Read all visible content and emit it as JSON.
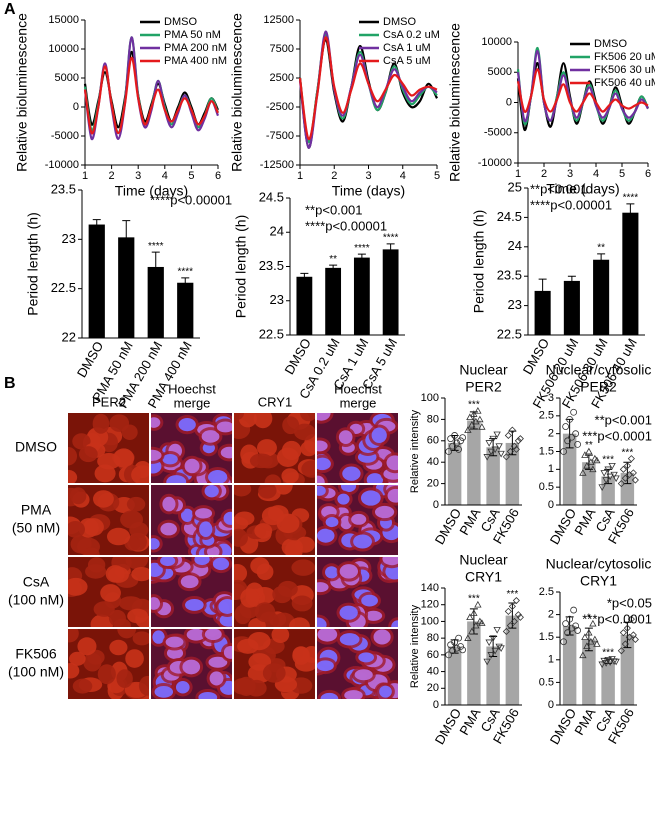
{
  "panels": {
    "a": "A",
    "b": "B"
  },
  "micrographs": {
    "columns": [
      [
        "PER2"
      ],
      [
        "Hoechst",
        "merge"
      ],
      [
        "CRY1"
      ],
      [
        "Hoechst",
        "merge"
      ]
    ],
    "rows": [
      [
        "DMSO"
      ],
      [
        "PMA",
        "(50 nM)"
      ],
      [
        "CsA",
        "(100 nM)"
      ],
      [
        "FK506",
        "(100 nM)"
      ]
    ]
  },
  "chart_data": [
    {
      "type": "line",
      "xlabel": "Time (days)",
      "ylabel": "Relative bioluminescence",
      "legend": "upper right",
      "x": [
        1,
        1.25,
        1.5,
        1.75,
        2,
        2.25,
        2.5,
        2.75,
        3,
        3.25,
        3.5,
        3.75,
        4,
        4.25,
        4.5,
        4.75,
        5,
        5.25,
        5.5,
        5.75,
        6
      ],
      "xlim": [
        1,
        6
      ],
      "xticks": [
        1,
        2,
        3,
        4,
        5,
        6
      ],
      "ylim": [
        -10000,
        15000
      ],
      "yticks": [
        -10000,
        -5000,
        0,
        5000,
        10000,
        15000
      ],
      "series": [
        {
          "name": "DMSO",
          "color": "#000000",
          "values": [
            4000,
            -3000,
            1000,
            6000,
            1000,
            -3500,
            1500,
            9500,
            2000,
            -2500,
            500,
            4000,
            500,
            -2500,
            0,
            2500,
            0,
            -3000,
            -1000,
            1500,
            -500
          ]
        },
        {
          "name": "PMA 50 nM",
          "color": "#21a366",
          "values": [
            3500,
            -4000,
            500,
            7000,
            500,
            -4500,
            1000,
            12000,
            2000,
            -3000,
            0,
            4500,
            0,
            -3000,
            -500,
            2000,
            -500,
            -3500,
            -1500,
            1500,
            -1000
          ]
        },
        {
          "name": "PMA 200 nM",
          "color": "#7030a0",
          "values": [
            3000,
            -5500,
            0,
            7500,
            0,
            -5500,
            500,
            12000,
            1500,
            -3500,
            -500,
            4500,
            -500,
            -3500,
            -1000,
            2000,
            -1000,
            -4000,
            -2000,
            1000,
            -1500
          ]
        },
        {
          "name": "PMA 400 nM",
          "color": "#e41a1c",
          "values": [
            3000,
            -4500,
            0,
            7000,
            500,
            -4500,
            500,
            8500,
            1500,
            -3000,
            0,
            3000,
            -500,
            -2500,
            -500,
            1500,
            -500,
            -3000,
            -1500,
            1000,
            -1000
          ]
        }
      ]
    },
    {
      "type": "line",
      "xlabel": "Time (days)",
      "ylabel": "Relative bioluminescence",
      "legend": "upper right",
      "x": [
        1,
        1.25,
        1.5,
        1.75,
        2,
        2.25,
        2.5,
        2.75,
        3,
        3.25,
        3.5,
        3.75,
        4,
        4.25,
        4.5,
        4.75,
        5
      ],
      "xlim": [
        1,
        5
      ],
      "xticks": [
        1,
        2,
        3,
        4,
        5
      ],
      "ylim": [
        -12500,
        12500
      ],
      "yticks": [
        -12500,
        -7500,
        -2500,
        2500,
        7500,
        12500
      ],
      "series": [
        {
          "name": "DMSO",
          "color": "#000000",
          "values": [
            2500,
            -9500,
            0,
            9000,
            0,
            -5000,
            1000,
            8000,
            2000,
            -3000,
            0,
            5000,
            0,
            -2500,
            -1500,
            1500,
            -1000
          ]
        },
        {
          "name": "CsA 0.2 uM",
          "color": "#21a366",
          "values": [
            2500,
            -8500,
            0,
            10000,
            500,
            -4500,
            1000,
            7000,
            1500,
            -3000,
            0,
            4500,
            500,
            -2000,
            -500,
            1000,
            -500
          ]
        },
        {
          "name": "CsA 1 uM",
          "color": "#7030a0",
          "values": [
            2000,
            -9500,
            -500,
            10500,
            500,
            -4000,
            1000,
            6500,
            1500,
            -2500,
            500,
            4000,
            1000,
            -1500,
            0,
            1000,
            0
          ]
        },
        {
          "name": "CsA 5 uM",
          "color": "#e41a1c",
          "values": [
            2500,
            -8000,
            -500,
            9500,
            1000,
            -3500,
            500,
            5000,
            1500,
            -1500,
            500,
            3000,
            1500,
            -500,
            500,
            1000,
            500
          ]
        }
      ]
    },
    {
      "type": "line",
      "xlabel": "Time (days)",
      "ylabel": "Relative bioluminescence",
      "legend": "upper right",
      "x": [
        1,
        1.25,
        1.5,
        1.75,
        2,
        2.25,
        2.5,
        2.75,
        3,
        3.25,
        3.5,
        3.75,
        4,
        4.25,
        4.5,
        4.75,
        5,
        5.25,
        5.5,
        5.75,
        6
      ],
      "xlim": [
        1,
        6
      ],
      "xticks": [
        1,
        2,
        3,
        4,
        5,
        6
      ],
      "ylim": [
        -10000,
        10000
      ],
      "yticks": [
        -10000,
        -5000,
        0,
        5000,
        10000
      ],
      "series": [
        {
          "name": "DMSO",
          "color": "#000000",
          "values": [
            4000,
            -4500,
            1000,
            6500,
            0,
            -4000,
            1000,
            6500,
            1000,
            -3500,
            0,
            3500,
            0,
            -3500,
            -1000,
            2500,
            -500,
            -3500,
            -1500,
            1000,
            -1000
          ]
        },
        {
          "name": "FK506 20 uM",
          "color": "#21a366",
          "values": [
            5500,
            -3500,
            1000,
            9000,
            0,
            -3000,
            1000,
            5000,
            500,
            -3000,
            0,
            3000,
            -500,
            -3000,
            -1000,
            2000,
            -1000,
            -3000,
            -1500,
            1000,
            -1000
          ]
        },
        {
          "name": "FK506 30 uM",
          "color": "#7030a0",
          "values": [
            5000,
            -3000,
            1000,
            8500,
            0,
            -3000,
            500,
            4500,
            500,
            -2500,
            0,
            2500,
            -500,
            -2500,
            -1000,
            1500,
            -1000,
            -2500,
            -1500,
            500,
            -1000
          ]
        },
        {
          "name": "FK506 40 uM",
          "color": "#e41a1c",
          "values": [
            3500,
            -1500,
            1000,
            5500,
            500,
            -1500,
            500,
            3000,
            0,
            -1500,
            0,
            1500,
            0,
            -1500,
            -500,
            500,
            -500,
            -1000,
            -500,
            0,
            -500
          ]
        }
      ]
    },
    {
      "type": "bar",
      "ylabel": "Period length (h)",
      "color": "#000000",
      "categories": [
        "DMSO",
        "PMA 50 nM",
        "PMA 200 nM",
        "PMA 400 nM"
      ],
      "values": [
        23.15,
        23.02,
        22.72,
        22.56
      ],
      "errors": [
        0.05,
        0.17,
        0.15,
        0.05
      ],
      "sig_labels": [
        null,
        null,
        "****",
        "****"
      ],
      "annotations": [
        "****p<0.00001"
      ],
      "ylim": [
        22,
        23.5
      ],
      "yticks": [
        22,
        22.5,
        23,
        23.5
      ]
    },
    {
      "type": "bar",
      "ylabel": "Period length (h)",
      "color": "#000000",
      "categories": [
        "DMSO",
        "CsA 0.2 uM",
        "CsA 1 uM",
        "CsA 5 uM"
      ],
      "values": [
        23.35,
        23.48,
        23.63,
        23.75
      ],
      "errors": [
        0.05,
        0.04,
        0.05,
        0.08
      ],
      "sig_labels": [
        null,
        "**",
        "****",
        "****"
      ],
      "annotations": [
        "**p<0.001",
        "****p<0.00001"
      ],
      "ylim": [
        22.5,
        24.5
      ],
      "yticks": [
        22.5,
        23,
        23.5,
        24,
        24.5
      ]
    },
    {
      "type": "bar",
      "ylabel": "Period length (h)",
      "color": "#000000",
      "categories": [
        "DMSO",
        "FK506 20 uM",
        "FK506 30 uM",
        "FK506 40 uM"
      ],
      "values": [
        23.25,
        23.42,
        23.78,
        24.58
      ],
      "errors": [
        0.2,
        0.08,
        0.1,
        0.15
      ],
      "sig_labels": [
        null,
        null,
        "**",
        "****"
      ],
      "annotations": [
        "**p<0.001",
        "****p<0.00001"
      ],
      "ylim": [
        22.5,
        25
      ],
      "yticks": [
        22.5,
        23,
        23.5,
        24,
        24.5,
        25
      ]
    },
    {
      "type": "bar",
      "title": [
        "Nuclear",
        "PER2"
      ],
      "ylabel": "Relative intensity",
      "color": "#a6a6a6",
      "markers": [
        "circle",
        "triangle",
        "triangle-down",
        "diamond"
      ],
      "categories": [
        "DMSO",
        "PMA",
        "CsA",
        "FK506"
      ],
      "values": [
        58,
        79,
        54,
        58
      ],
      "errors": [
        7,
        8,
        8,
        11
      ],
      "sig_labels": [
        null,
        "***",
        null,
        null
      ],
      "points": [
        [
          50,
          55,
          58,
          60,
          62,
          65,
          52,
          63
        ],
        [
          70,
          75,
          78,
          80,
          82,
          85,
          88,
          73
        ],
        [
          45,
          50,
          52,
          55,
          58,
          62,
          66,
          48
        ],
        [
          45,
          50,
          55,
          60,
          65,
          70,
          52,
          62
        ]
      ],
      "ylim": [
        0,
        100
      ],
      "yticks": [
        0,
        20,
        40,
        60,
        80,
        100
      ]
    },
    {
      "type": "bar",
      "title": [
        "Nuclear/cytosolic",
        "PER2"
      ],
      "color": "#a6a6a6",
      "markers": [
        "circle",
        "triangle",
        "triangle-down",
        "diamond"
      ],
      "categories": [
        "DMSO",
        "PMA",
        "CsA",
        "FK506"
      ],
      "values": [
        2.0,
        1.2,
        0.8,
        0.9
      ],
      "errors": [
        0.4,
        0.2,
        0.2,
        0.3
      ],
      "sig_labels": [
        null,
        "**",
        "***",
        "***"
      ],
      "annotations": [
        "**p<0.001",
        "***p<0.0001"
      ],
      "points": [
        [
          1.5,
          1.8,
          1.9,
          2.0,
          2.2,
          2.4,
          2.6,
          1.7
        ],
        [
          0.9,
          1.1,
          1.2,
          1.3,
          1.4,
          1.5,
          1.0,
          1.25
        ],
        [
          0.5,
          0.7,
          0.8,
          0.85,
          0.9,
          1.0,
          1.1,
          0.75
        ],
        [
          0.6,
          0.75,
          0.85,
          0.9,
          1.0,
          1.1,
          1.3,
          0.7
        ]
      ],
      "ylim": [
        0,
        3
      ],
      "yticks": [
        0,
        0.5,
        1,
        1.5,
        2,
        2.5,
        3
      ]
    },
    {
      "type": "bar",
      "title": [
        "Nuclear",
        "CRY1"
      ],
      "ylabel": "Relative intensity",
      "color": "#a6a6a6",
      "markers": [
        "circle",
        "triangle",
        "triangle-down",
        "diamond"
      ],
      "categories": [
        "DMSO",
        "PMA",
        "CsA",
        "FK506"
      ],
      "values": [
        70,
        100,
        70,
        107
      ],
      "errors": [
        8,
        15,
        12,
        15
      ],
      "sig_labels": [
        null,
        "***",
        null,
        "***"
      ],
      "points": [
        [
          60,
          65,
          68,
          70,
          72,
          75,
          80,
          66
        ],
        [
          80,
          88,
          95,
          100,
          105,
          110,
          120,
          98
        ],
        [
          52,
          60,
          65,
          70,
          75,
          80,
          90,
          68
        ],
        [
          88,
          95,
          100,
          108,
          112,
          118,
          125,
          105
        ]
      ],
      "ylim": [
        0,
        140
      ],
      "yticks": [
        0,
        20,
        40,
        60,
        80,
        100,
        120,
        140
      ]
    },
    {
      "type": "bar",
      "title": [
        "Nuclear/cytosolic",
        "CRY1"
      ],
      "color": "#a6a6a6",
      "markers": [
        "circle",
        "triangle",
        "triangle-down",
        "diamond"
      ],
      "categories": [
        "DMSO",
        "PMA",
        "CsA",
        "FK506"
      ],
      "values": [
        1.75,
        1.45,
        0.97,
        1.55
      ],
      "errors": [
        0.2,
        0.25,
        0.05,
        0.28
      ],
      "sig_labels": [
        null,
        "*",
        "***",
        null
      ],
      "annotations": [
        "*p<0.05",
        "***p<0.0001"
      ],
      "points": [
        [
          1.4,
          1.6,
          1.7,
          1.75,
          1.8,
          1.9,
          2.1,
          1.65
        ],
        [
          1.1,
          1.3,
          1.4,
          1.45,
          1.5,
          1.6,
          1.8,
          1.35
        ],
        [
          0.9,
          0.93,
          0.95,
          0.97,
          0.98,
          1.0,
          1.02,
          0.96
        ],
        [
          1.2,
          1.35,
          1.5,
          1.55,
          1.6,
          1.7,
          1.9,
          1.45
        ]
      ],
      "ylim": [
        0,
        2.5
      ],
      "yticks": [
        0,
        0.5,
        1,
        1.5,
        2,
        2.5
      ]
    }
  ]
}
